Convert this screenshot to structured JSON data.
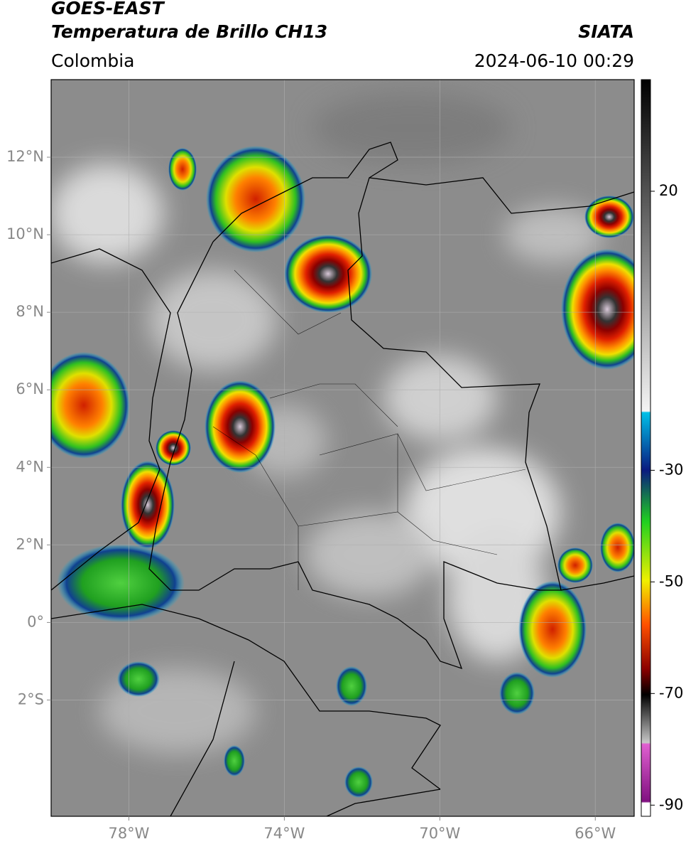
{
  "chart_data": {
    "type": "map",
    "title": "GOES-EAST",
    "subtitle": "Temperatura de Brillo CH13",
    "source": "SIATA",
    "region": "Colombia",
    "datetime": "2024-06-10 00:29",
    "xlim": [
      -80,
      -65
    ],
    "ylim": [
      -5,
      14
    ],
    "xticks": [
      {
        "value": -78,
        "label": "78°W"
      },
      {
        "value": -74,
        "label": "74°W"
      },
      {
        "value": -70,
        "label": "70°W"
      },
      {
        "value": -66,
        "label": "66°W"
      }
    ],
    "yticks": [
      {
        "value": -2,
        "label": "2°S"
      },
      {
        "value": 0,
        "label": "0°"
      },
      {
        "value": 2,
        "label": "2°N"
      },
      {
        "value": 4,
        "label": "4°N"
      },
      {
        "value": 6,
        "label": "6°N"
      },
      {
        "value": 8,
        "label": "8°N"
      },
      {
        "value": 10,
        "label": "10°N"
      },
      {
        "value": 12,
        "label": "12°N"
      }
    ],
    "colorbar_lim": [
      40,
      -92
    ],
    "colorbar_ticks": [
      20,
      -30,
      -50,
      -70,
      -90
    ],
    "grid": true
  }
}
